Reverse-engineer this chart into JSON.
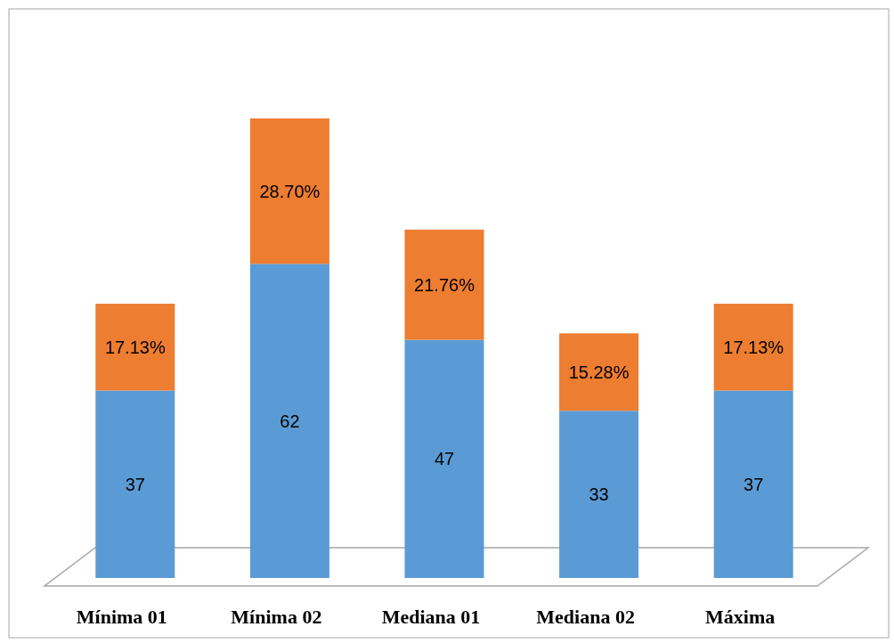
{
  "chart_data": {
    "type": "bar",
    "stacked": true,
    "categories": [
      "Mínima 01",
      "Mínima 02",
      "Mediana 01",
      "Mediana 02",
      "Máxima"
    ],
    "series": [
      {
        "color": "#5b9bd5",
        "values": [
          37,
          62,
          47,
          33,
          37
        ],
        "value_labels": [
          "37",
          "62",
          "47",
          "33",
          "37"
        ]
      },
      {
        "color": "#ed7d31",
        "values": [
          17.13,
          28.7,
          21.76,
          15.28,
          17.13
        ],
        "value_labels": [
          "17.13%",
          "28.70%",
          "21.76%",
          "15.28%",
          "17.13%"
        ]
      }
    ]
  }
}
